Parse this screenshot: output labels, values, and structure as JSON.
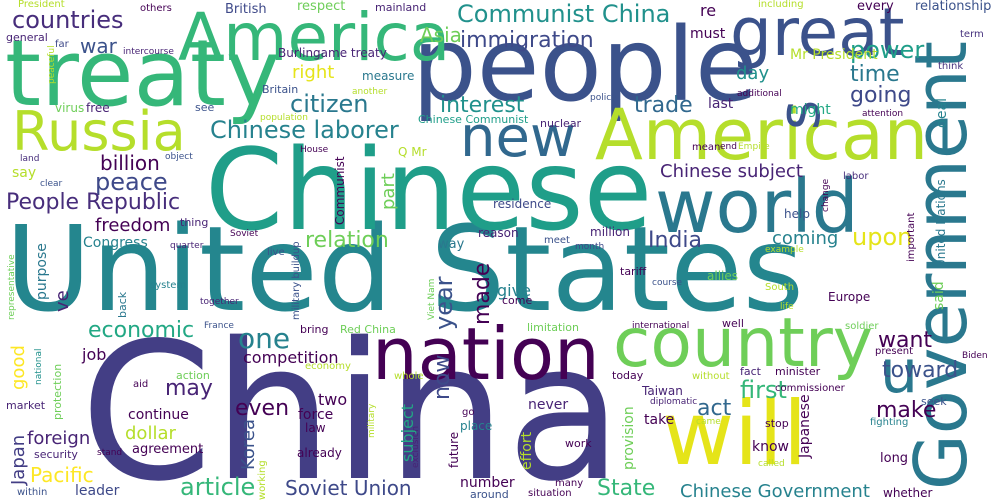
{
  "words": [
    {
      "text": "China",
      "color": "#433e85"
    },
    {
      "text": "United States",
      "color": "#24868e"
    },
    {
      "text": "Chinese",
      "color": "#1f9e89"
    },
    {
      "text": "people",
      "color": "#3b528b"
    },
    {
      "text": "treaty",
      "color": "#35b779"
    },
    {
      "text": "will",
      "color": "#e5e419"
    },
    {
      "text": "Government",
      "color": "#2a788e"
    },
    {
      "text": "world",
      "color": "#2a788e"
    },
    {
      "text": "American",
      "color": "#b5de2b"
    },
    {
      "text": "nation",
      "color": "#440154"
    },
    {
      "text": "country",
      "color": "#6ece58"
    },
    {
      "text": "America",
      "color": "#35b779"
    },
    {
      "text": "great",
      "color": "#3b528b"
    },
    {
      "text": "s",
      "color": "#3b528b"
    },
    {
      "text": "Russia",
      "color": "#b5de2b"
    },
    {
      "text": "new",
      "color": "#31688e"
    },
    {
      "text": "u",
      "color": "#2a788e"
    },
    {
      "text": "Communist China",
      "color": "#21918c"
    },
    {
      "text": "countries",
      "color": "#472d7b"
    },
    {
      "text": "immigration",
      "color": "#3e4989"
    },
    {
      "text": "power",
      "color": "#1f9e89"
    },
    {
      "text": "time",
      "color": "#2a788e"
    },
    {
      "text": "Asia",
      "color": "#6ece58"
    },
    {
      "text": "war",
      "color": "#3b528b"
    },
    {
      "text": "citizen",
      "color": "#2a788e"
    },
    {
      "text": "interest",
      "color": "#21918c"
    },
    {
      "text": "trade",
      "color": "#31688e"
    },
    {
      "text": "going",
      "color": "#3e4989"
    },
    {
      "text": "Chinese laborer",
      "color": "#26828e"
    },
    {
      "text": "peace",
      "color": "#3e4989"
    },
    {
      "text": "billion",
      "color": "#440154"
    },
    {
      "text": "People Republic",
      "color": "#472d7b"
    },
    {
      "text": "freedom",
      "color": "#440154"
    },
    {
      "text": "relation",
      "color": "#6ece58"
    },
    {
      "text": "India",
      "color": "#3e4989"
    },
    {
      "text": "upon",
      "color": "#e5e419"
    },
    {
      "text": "coming",
      "color": "#26828e"
    },
    {
      "text": "one",
      "color": "#26828e"
    },
    {
      "text": "Chinese subject",
      "color": "#482475"
    },
    {
      "text": "economic",
      "color": "#22a884"
    },
    {
      "text": "year",
      "color": "#3b528b"
    },
    {
      "text": "made",
      "color": "#440154"
    },
    {
      "text": "want",
      "color": "#440154"
    },
    {
      "text": "first",
      "color": "#35b779"
    },
    {
      "text": "toward",
      "color": "#3b528b"
    },
    {
      "text": "may",
      "color": "#482475"
    },
    {
      "text": "even",
      "color": "#440154"
    },
    {
      "text": "act",
      "color": "#31688e"
    },
    {
      "text": "make",
      "color": "#440154"
    },
    {
      "text": "Japan",
      "color": "#433e85"
    },
    {
      "text": "foreign",
      "color": "#482475"
    },
    {
      "text": "article",
      "color": "#35b779"
    },
    {
      "text": "Soviet Union",
      "color": "#3e4989"
    },
    {
      "text": "State",
      "color": "#35b779"
    },
    {
      "text": "Chinese Government",
      "color": "#26828e"
    },
    {
      "text": "now",
      "color": "#3e4989"
    },
    {
      "text": "Pacific",
      "color": "#fde725"
    },
    {
      "text": "good",
      "color": "#fde725"
    },
    {
      "text": "Korea",
      "color": "#3b528b"
    },
    {
      "text": "dollar",
      "color": "#b5de2b"
    },
    {
      "text": "right",
      "color": "#e5e419"
    },
    {
      "text": "day",
      "color": "#21918c"
    },
    {
      "text": "Mr President",
      "color": "#b5de2b"
    },
    {
      "text": "last",
      "color": "#482475"
    },
    {
      "text": "might",
      "color": "#22a884"
    },
    {
      "text": "must",
      "color": "#440154"
    },
    {
      "text": "re",
      "color": "#440154"
    },
    {
      "text": "every",
      "color": "#440154"
    },
    {
      "text": "relationship",
      "color": "#3b528b"
    },
    {
      "text": "term",
      "color": "#46327e"
    },
    {
      "text": "respect",
      "color": "#6ece58"
    },
    {
      "text": "mainland",
      "color": "#482475"
    },
    {
      "text": "including",
      "color": "#b5de2b"
    },
    {
      "text": "British",
      "color": "#3e4989"
    },
    {
      "text": "others",
      "color": "#440154"
    },
    {
      "text": "President",
      "color": "#b5de2b"
    },
    {
      "text": "general",
      "color": "#482475"
    },
    {
      "text": "far",
      "color": "#3e4989"
    },
    {
      "text": "peaceful",
      "color": "#b5de2b"
    },
    {
      "text": "intercourse",
      "color": "#482475"
    },
    {
      "text": "Burlingame treaty",
      "color": "#482475"
    },
    {
      "text": "measure",
      "color": "#2a788e"
    },
    {
      "text": "think",
      "color": "#46327e"
    },
    {
      "text": "virus",
      "color": "#6ece58"
    },
    {
      "text": "free",
      "color": "#482475"
    },
    {
      "text": "see",
      "color": "#3b528b"
    },
    {
      "text": "Britain",
      "color": "#3b528b"
    },
    {
      "text": "another",
      "color": "#b5de2b"
    },
    {
      "text": "population",
      "color": "#b5de2b"
    },
    {
      "text": "Chinese Communist",
      "color": "#1f9e89"
    },
    {
      "text": "policy",
      "color": "#3b528b"
    },
    {
      "text": "additional",
      "color": "#440154"
    },
    {
      "text": "attention",
      "color": "#440154"
    },
    {
      "text": "nuclear",
      "color": "#482475"
    },
    {
      "text": "mean",
      "color": "#440154"
    },
    {
      "text": "end",
      "color": "#440154"
    },
    {
      "text": "Empire",
      "color": "#b5de2b"
    },
    {
      "text": "labor",
      "color": "#472d7b"
    },
    {
      "text": "land",
      "color": "#472d7b"
    },
    {
      "text": "object",
      "color": "#3b528b"
    },
    {
      "text": "House",
      "color": "#440154"
    },
    {
      "text": "Communist",
      "color": "#440154"
    },
    {
      "text": "Q Mr",
      "color": "#b5de2b"
    },
    {
      "text": "say",
      "color": "#b5de2b"
    },
    {
      "text": "clear",
      "color": "#3b528b"
    },
    {
      "text": "part",
      "color": "#6ece58"
    },
    {
      "text": "residence",
      "color": "#3e4989"
    },
    {
      "text": "help",
      "color": "#3b528b"
    },
    {
      "text": "important",
      "color": "#440154"
    },
    {
      "text": "United Nations",
      "color": "#2a788e"
    },
    {
      "text": "deal",
      "color": "#26828e"
    },
    {
      "text": "said",
      "color": "#6ece58"
    },
    {
      "text": "change",
      "color": "#440154"
    },
    {
      "text": "Congress",
      "color": "#26828e"
    },
    {
      "text": "thing",
      "color": "#482475"
    },
    {
      "text": "quarter",
      "color": "#482475"
    },
    {
      "text": "Soviet",
      "color": "#440154"
    },
    {
      "text": "reason",
      "color": "#482475"
    },
    {
      "text": "million",
      "color": "#482475"
    },
    {
      "text": "way",
      "color": "#2a788e"
    },
    {
      "text": "meet",
      "color": "#3b528b"
    },
    {
      "text": "month",
      "color": "#3e4989"
    },
    {
      "text": "example",
      "color": "#b5de2b"
    },
    {
      "text": "representative",
      "color": "#6ece58"
    },
    {
      "text": "purpose",
      "color": "#2a788e"
    },
    {
      "text": "ve",
      "color": "#482475"
    },
    {
      "text": "system",
      "color": "#26828e"
    },
    {
      "text": "back",
      "color": "#2a788e"
    },
    {
      "text": "together",
      "color": "#482475"
    },
    {
      "text": "live",
      "color": "#3b528b"
    },
    {
      "text": "military buildup",
      "color": "#3b528b"
    },
    {
      "text": "tariff",
      "color": "#440154"
    },
    {
      "text": "allies",
      "color": "#6ece58"
    },
    {
      "text": "course",
      "color": "#3b528b"
    },
    {
      "text": "give",
      "color": "#26828e"
    },
    {
      "text": "come",
      "color": "#440154"
    },
    {
      "text": "Viet Nam",
      "color": "#6ece58"
    },
    {
      "text": "South",
      "color": "#b5de2b"
    },
    {
      "text": "life",
      "color": "#b5de2b"
    },
    {
      "text": "Europe",
      "color": "#440154"
    },
    {
      "text": "soldier",
      "color": "#6ece58"
    },
    {
      "text": "limitation",
      "color": "#6ece58"
    },
    {
      "text": "international",
      "color": "#440154"
    },
    {
      "text": "well",
      "color": "#440154"
    },
    {
      "text": "France",
      "color": "#3b528b"
    },
    {
      "text": "bring",
      "color": "#440154"
    },
    {
      "text": "Red China",
      "color": "#6ece58"
    },
    {
      "text": "competition",
      "color": "#440154"
    },
    {
      "text": "present",
      "color": "#440154"
    },
    {
      "text": "Biden",
      "color": "#440154"
    },
    {
      "text": "job",
      "color": "#440154"
    },
    {
      "text": "national",
      "color": "#21918c"
    },
    {
      "text": "economy",
      "color": "#b5de2b"
    },
    {
      "text": "fact",
      "color": "#482475"
    },
    {
      "text": "minister",
      "color": "#440154"
    },
    {
      "text": "action",
      "color": "#6ece58"
    },
    {
      "text": "aid",
      "color": "#440154"
    },
    {
      "text": "whole",
      "color": "#b5de2b"
    },
    {
      "text": "today",
      "color": "#440154"
    },
    {
      "text": "without",
      "color": "#b5de2b"
    },
    {
      "text": "Taiwan",
      "color": "#482475"
    },
    {
      "text": "commissioner",
      "color": "#440154"
    },
    {
      "text": "market",
      "color": "#482475"
    },
    {
      "text": "protection",
      "color": "#6ece58"
    },
    {
      "text": "continue",
      "color": "#440154"
    },
    {
      "text": "two",
      "color": "#440154"
    },
    {
      "text": "force",
      "color": "#440154"
    },
    {
      "text": "law",
      "color": "#440154"
    },
    {
      "text": "diplomatic",
      "color": "#482475"
    },
    {
      "text": "seek",
      "color": "#3b528b"
    },
    {
      "text": "never",
      "color": "#482475"
    },
    {
      "text": "take",
      "color": "#440154"
    },
    {
      "text": "came",
      "color": "#b5de2b"
    },
    {
      "text": "stop",
      "color": "#440154"
    },
    {
      "text": "fighting",
      "color": "#26828e"
    },
    {
      "text": "security",
      "color": "#482475"
    },
    {
      "text": "stand",
      "color": "#440154"
    },
    {
      "text": "agreement",
      "color": "#440154"
    },
    {
      "text": "military",
      "color": "#b5de2b"
    },
    {
      "text": "exclusion",
      "color": "#482475"
    },
    {
      "text": "go",
      "color": "#440154"
    },
    {
      "text": "place",
      "color": "#26828e"
    },
    {
      "text": "future",
      "color": "#440154"
    },
    {
      "text": "effort",
      "color": "#b5de2b"
    },
    {
      "text": "subject",
      "color": "#22a884"
    },
    {
      "text": "provision",
      "color": "#6ece58"
    },
    {
      "text": "Japanese",
      "color": "#440154"
    },
    {
      "text": "know",
      "color": "#440154"
    },
    {
      "text": "work",
      "color": "#440154"
    },
    {
      "text": "called",
      "color": "#b5de2b"
    },
    {
      "text": "long",
      "color": "#440154"
    },
    {
      "text": "within",
      "color": "#3b528b"
    },
    {
      "text": "leader",
      "color": "#3e4989"
    },
    {
      "text": "already",
      "color": "#440154"
    },
    {
      "text": "number",
      "color": "#440154"
    },
    {
      "text": "around",
      "color": "#3b528b"
    },
    {
      "text": "many",
      "color": "#440154"
    },
    {
      "text": "situation",
      "color": "#440154"
    },
    {
      "text": "whether",
      "color": "#440154"
    },
    {
      "text": "working",
      "color": "#b5de2b"
    }
  ]
}
